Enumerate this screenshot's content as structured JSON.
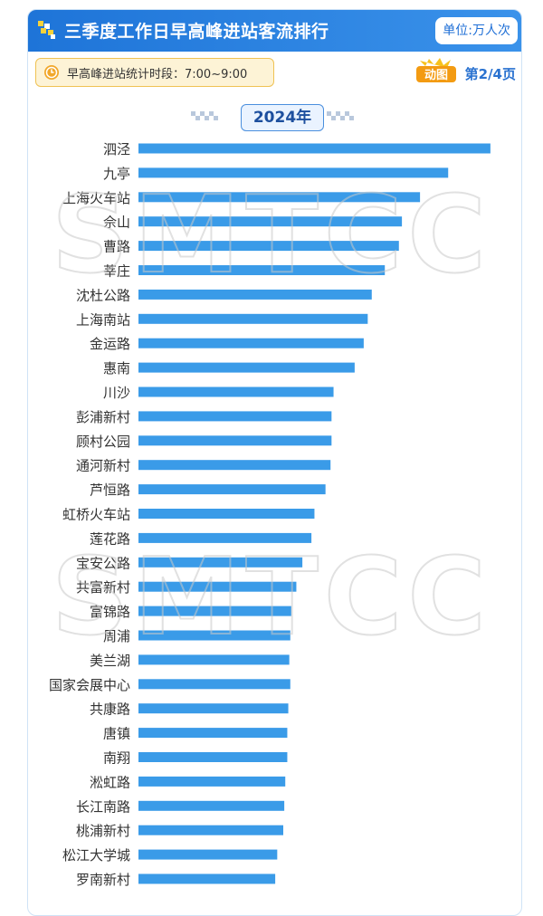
{
  "header": {
    "title": "三季度工作日早高峰进站客流排行",
    "unit": "单位:万人次"
  },
  "period_label": "早高峰进站统计时段：7:00~9:00",
  "badge_label": "动图",
  "page_indicator": "第2/4页",
  "watermark": "SMTCC",
  "colors": {
    "header": "#1e74d8",
    "bar": "#3a9be8",
    "accent": "#efc253"
  },
  "chart_data": {
    "type": "bar",
    "orientation": "horizontal",
    "title": "2024年",
    "categories": [
      "泗泾",
      "九亭",
      "上海火车站",
      "佘山",
      "曹路",
      "莘庄",
      "沈杜公路",
      "上海南站",
      "金运路",
      "惠南",
      "川沙",
      "彭浦新村",
      "顾村公园",
      "通河新村",
      "芦恒路",
      "虹桥火车站",
      "莲花路",
      "宝安公路",
      "共富新村",
      "富锦路",
      "周浦",
      "美兰湖",
      "国家会展中心",
      "共康路",
      "唐镇",
      "南翔",
      "淞虹路",
      "长江南路",
      "桃浦新村",
      "松江大学城",
      "罗南新村"
    ],
    "values": [
      3.5,
      3.08,
      2.8,
      2.62,
      2.59,
      2.45,
      2.32,
      2.28,
      2.24,
      2.15,
      1.94,
      1.92,
      1.92,
      1.91,
      1.86,
      1.75,
      1.72,
      1.63,
      1.57,
      1.52,
      1.51,
      1.5,
      1.51,
      1.49,
      1.48,
      1.48,
      1.46,
      1.45,
      1.44,
      1.38,
      1.36
    ],
    "xlim": [
      0,
      3.6
    ],
    "grid": false,
    "legend": "none"
  }
}
